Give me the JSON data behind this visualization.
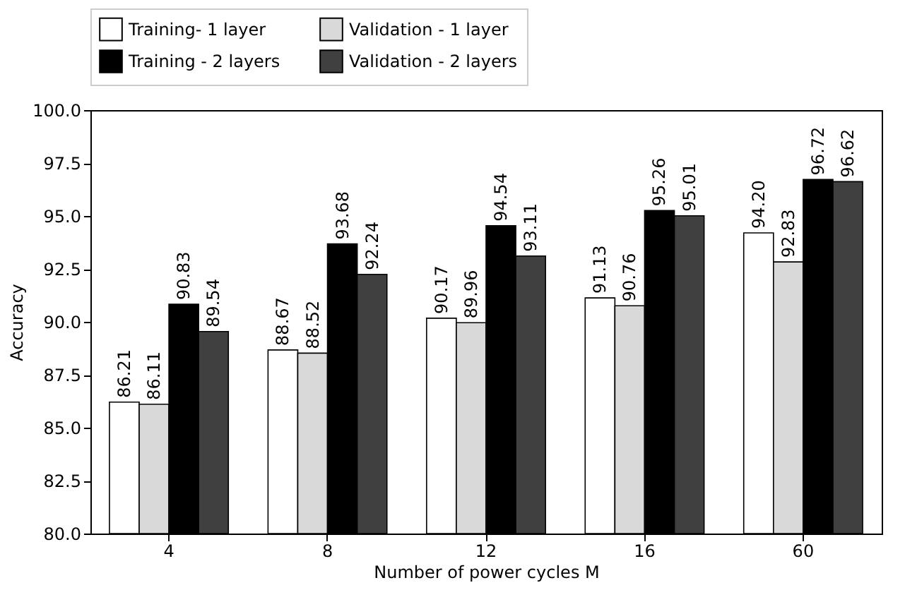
{
  "chart_data": {
    "type": "bar",
    "xlabel": "Number of power cycles M",
    "ylabel": "Accuracy",
    "categories": [
      "4",
      "8",
      "12",
      "16",
      "60"
    ],
    "series": [
      {
        "name": "Training- 1 layer",
        "color": "#ffffff",
        "values": [
          86.21,
          88.67,
          90.17,
          91.13,
          94.2
        ],
        "value_labels": [
          "86.21",
          "88.67",
          "90.17",
          "91.13",
          "94.20"
        ]
      },
      {
        "name": "Validation - 1 layer",
        "color": "#d9d9d9",
        "values": [
          86.11,
          88.52,
          89.96,
          90.76,
          92.83
        ],
        "value_labels": [
          "86.11",
          "88.52",
          "89.96",
          "90.76",
          "92.83"
        ]
      },
      {
        "name": "Training - 2 layers",
        "color": "#000000",
        "values": [
          90.83,
          93.68,
          94.54,
          95.26,
          96.72
        ],
        "value_labels": [
          "90.83",
          "93.68",
          "94.54",
          "95.26",
          "96.72"
        ]
      },
      {
        "name": "Validation - 2 layers",
        "color": "#404040",
        "values": [
          89.54,
          92.24,
          93.11,
          95.01,
          96.62
        ],
        "value_labels": [
          "89.54",
          "92.24",
          "93.11",
          "95.01",
          "96.62"
        ]
      }
    ],
    "ylim": [
      80,
      100
    ],
    "yticks": [
      {
        "value": 80,
        "label": "80.0"
      },
      {
        "value": 82.5,
        "label": "82.5"
      },
      {
        "value": 85,
        "label": "85.0"
      },
      {
        "value": 87.5,
        "label": "87.5"
      },
      {
        "value": 90,
        "label": "90.0"
      },
      {
        "value": 92.5,
        "label": "92.5"
      },
      {
        "value": 95,
        "label": "95.0"
      },
      {
        "value": 97.5,
        "label": "97.5"
      },
      {
        "value": 100,
        "label": "100.0"
      }
    ],
    "grid": false,
    "legend": "top"
  }
}
